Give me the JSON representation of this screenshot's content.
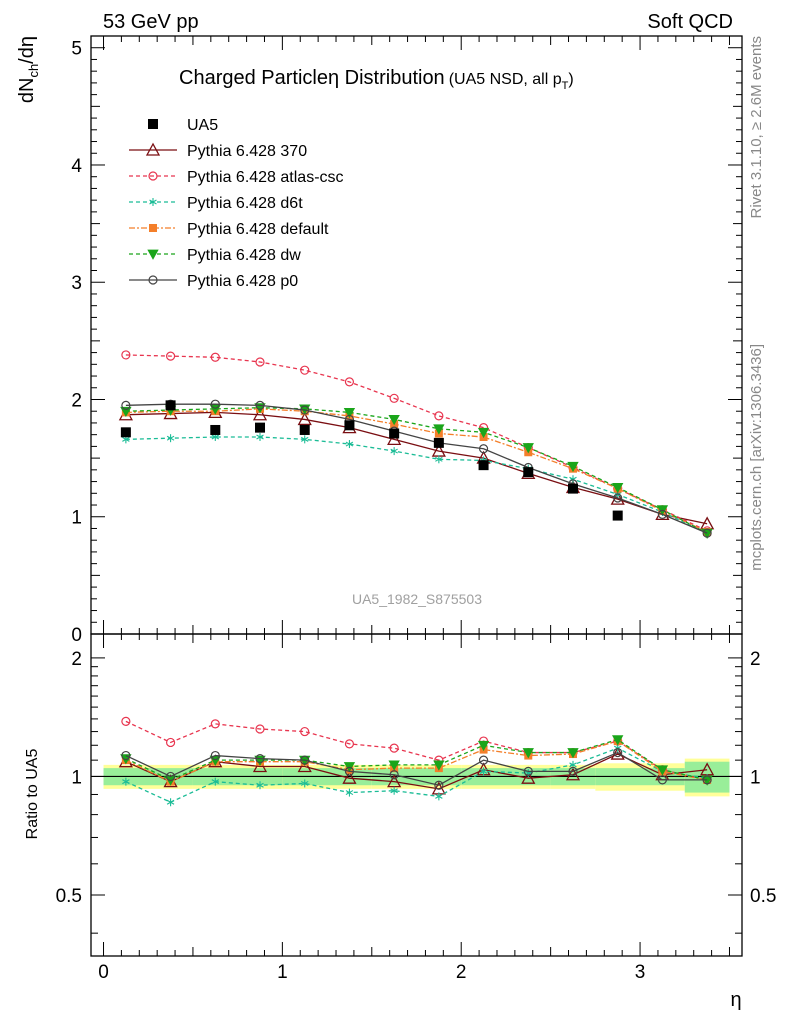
{
  "header": {
    "left": "53 GeV pp",
    "right": "Soft QCD"
  },
  "side_labels": {
    "top": "Rivet 3.1.10, ≥ 2.6M events",
    "bottom": "mcplots.cern.ch [arXiv:1306.3436]"
  },
  "chart_data": {
    "type": "scatter",
    "title": "Charged Particleη Distribution",
    "subtitle": "(UA5 NSD, all p_T)",
    "title_parts": {
      "main": "Charged Particleη Distribution",
      "sub_pre": "(UA5 NSD, all p",
      "sub_T": "T",
      "sub_post": ")"
    },
    "watermark": "UA5_1982_S875503",
    "xlabel": "η",
    "ylabel_parts": {
      "a": "dN",
      "sub": "ch",
      "b": "/dη"
    },
    "ratio_ylabel": "Ratio to UA5",
    "xlim": [
      -0.07,
      3.57
    ],
    "ylim": [
      0,
      5.1
    ],
    "ratio_ylim": [
      0.35,
      2.3
    ],
    "x_ticks": [
      "0",
      "1",
      "2",
      "3"
    ],
    "y_ticks": [
      "0",
      "1",
      "2",
      "3",
      "4",
      "5"
    ],
    "ratio_y_ticks": [
      "0.5",
      "1",
      "2"
    ],
    "x": [
      0.125,
      0.375,
      0.625,
      0.875,
      1.125,
      1.375,
      1.625,
      1.875,
      2.125,
      2.375,
      2.625,
      2.875,
      3.125,
      3.375
    ],
    "data": {
      "name": "UA5",
      "x": [
        0.125,
        0.375,
        0.625,
        0.875,
        1.125,
        1.375,
        1.625,
        1.875,
        2.125,
        2.375,
        2.625,
        2.875
      ],
      "values": [
        1.72,
        1.95,
        1.74,
        1.76,
        1.74,
        1.78,
        1.71,
        1.63,
        1.44,
        1.38,
        1.24,
        1.01
      ],
      "band_x": [
        [
          0.0,
          0.5
        ],
        [
          0.5,
          1.0
        ],
        [
          1.0,
          1.5
        ],
        [
          1.5,
          2.0
        ],
        [
          2.0,
          2.5
        ],
        [
          2.5,
          2.75
        ],
        [
          2.75,
          3.25
        ],
        [
          3.25,
          3.5
        ]
      ],
      "band_inner": [
        0.05,
        0.05,
        0.05,
        0.05,
        0.05,
        0.05,
        0.05,
        0.09
      ],
      "band_outer": [
        0.07,
        0.07,
        0.07,
        0.07,
        0.07,
        0.07,
        0.08,
        0.11
      ]
    },
    "series": [
      {
        "name": "Pythia 6.428 370",
        "color": "#7a0e12",
        "dash": "",
        "marker": "triangle-open",
        "values": [
          1.87,
          1.88,
          1.89,
          1.87,
          1.83,
          1.76,
          1.66,
          1.56,
          1.5,
          1.37,
          1.25,
          1.15,
          1.02,
          0.94
        ]
      },
      {
        "name": "Pythia 6.428 atlas-csc",
        "color": "#e8354f",
        "dash": "4,3",
        "marker": "circle-open",
        "values": [
          2.38,
          2.37,
          2.36,
          2.32,
          2.25,
          2.15,
          2.01,
          1.86,
          1.76,
          1.59,
          1.42,
          1.24,
          1.06,
          0.88
        ]
      },
      {
        "name": "Pythia 6.428 d6t",
        "color": "#1bbc96",
        "dash": "4,3",
        "marker": "star",
        "values": [
          1.66,
          1.67,
          1.68,
          1.68,
          1.66,
          1.62,
          1.56,
          1.49,
          1.48,
          1.41,
          1.32,
          1.19,
          1.04,
          0.86
        ]
      },
      {
        "name": "Pythia 6.428 default",
        "color": "#f47f2a",
        "dash": "6,2,2,2",
        "marker": "square",
        "values": [
          1.89,
          1.9,
          1.9,
          1.92,
          1.9,
          1.86,
          1.79,
          1.71,
          1.68,
          1.55,
          1.41,
          1.24,
          1.05,
          0.87
        ]
      },
      {
        "name": "Pythia 6.428 dw",
        "color": "#1aa51a",
        "dash": "4,3",
        "marker": "triangle-down",
        "values": [
          1.9,
          1.91,
          1.92,
          1.93,
          1.92,
          1.89,
          1.83,
          1.75,
          1.72,
          1.59,
          1.43,
          1.25,
          1.06,
          0.86
        ]
      },
      {
        "name": "Pythia 6.428 p0",
        "color": "#444444",
        "dash": "",
        "marker": "circle-open",
        "values": [
          1.95,
          1.96,
          1.96,
          1.95,
          1.91,
          1.83,
          1.73,
          1.63,
          1.58,
          1.42,
          1.28,
          1.16,
          1.02,
          0.86
        ]
      }
    ],
    "ratios": [
      {
        "name": "Pythia 6.428 370",
        "values": [
          1.09,
          0.97,
          1.09,
          1.06,
          1.06,
          0.99,
          0.97,
          0.93,
          1.04,
          0.99,
          1.01,
          1.14,
          1.01,
          1.04
        ]
      },
      {
        "name": "Pythia 6.428 atlas-csc",
        "values": [
          1.38,
          1.22,
          1.36,
          1.32,
          1.3,
          1.21,
          1.18,
          1.1,
          1.23,
          1.15,
          1.15,
          1.23,
          1.04,
          0.98
        ]
      },
      {
        "name": "Pythia 6.428 d6t",
        "values": [
          0.97,
          0.86,
          0.97,
          0.95,
          0.96,
          0.91,
          0.92,
          0.89,
          1.03,
          1.02,
          1.07,
          1.18,
          1.03,
          0.99
        ]
      },
      {
        "name": "Pythia 6.428 default",
        "values": [
          1.1,
          0.97,
          1.09,
          1.09,
          1.09,
          1.04,
          1.05,
          1.05,
          1.17,
          1.13,
          1.14,
          1.23,
          1.03,
          0.98
        ]
      },
      {
        "name": "Pythia 6.428 dw",
        "values": [
          1.11,
          0.98,
          1.1,
          1.1,
          1.1,
          1.06,
          1.07,
          1.07,
          1.2,
          1.15,
          1.15,
          1.24,
          1.04,
          0.98
        ]
      },
      {
        "name": "Pythia 6.428 p0",
        "values": [
          1.13,
          1.0,
          1.13,
          1.11,
          1.1,
          1.03,
          1.01,
          0.95,
          1.1,
          1.03,
          1.03,
          1.15,
          0.98,
          0.98
        ]
      }
    ]
  }
}
